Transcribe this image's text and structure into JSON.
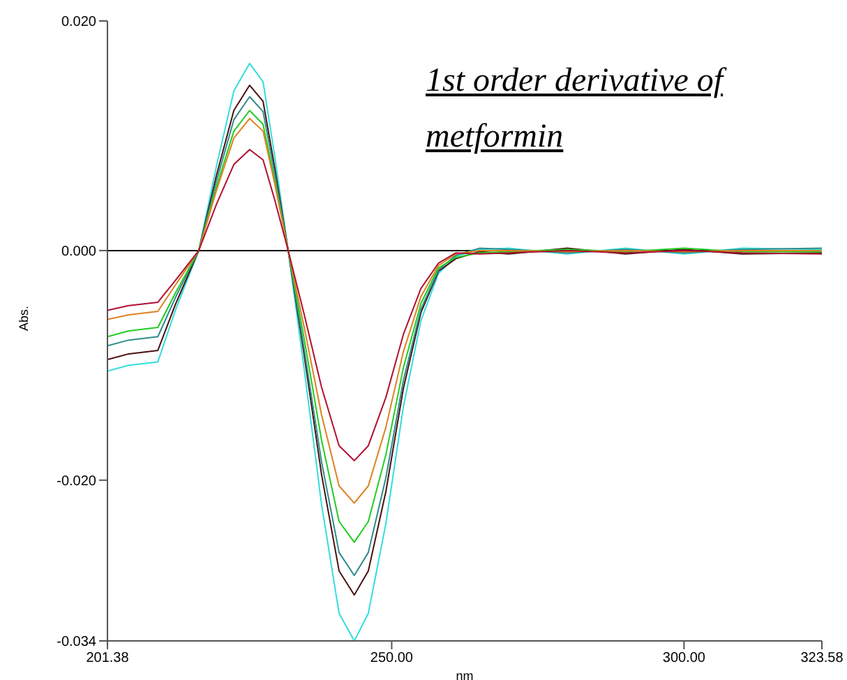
{
  "chart_data": {
    "type": "line",
    "title": "1st order derivative of metformin",
    "xlabel": "nm",
    "ylabel": "Abs.",
    "x": [
      201.38,
      205,
      210,
      213,
      217,
      220,
      223,
      225.7,
      228,
      230,
      232.3,
      235,
      238,
      241,
      243.6,
      246,
      249,
      252,
      255,
      258,
      261,
      265,
      270,
      280,
      290,
      300,
      310,
      323.58
    ],
    "series": [
      {
        "color": "#33dddd",
        "values": [
          -0.0105,
          -0.01,
          -0.0097,
          -0.0052,
          0,
          0.0073,
          0.0139,
          0.0163,
          0.0147,
          0.0082,
          0,
          -0.0102,
          -0.0221,
          -0.0316,
          -0.034,
          -0.0316,
          -0.0238,
          -0.0136,
          -0.0061,
          -0.002,
          -0.0005,
          0.0001,
          0.0002,
          -0.0003,
          0.0002,
          -0.0003,
          0.0002,
          0.0001
        ]
      },
      {
        "color": "#4a1010",
        "values": [
          -0.0095,
          -0.009,
          -0.0087,
          -0.0047,
          0,
          0.0065,
          0.0122,
          0.0144,
          0.013,
          0.0072,
          0,
          -0.009,
          -0.0195,
          -0.0279,
          -0.03,
          -0.0279,
          -0.021,
          -0.012,
          -0.0054,
          -0.0018,
          -0.0007,
          -0.0001,
          -0.0003,
          0.0002,
          -0.0003,
          0.0001,
          -0.0003,
          -0.0002
        ]
      },
      {
        "color": "#2e8b8b",
        "values": [
          -0.0083,
          -0.0078,
          -0.0075,
          -0.0041,
          0,
          0.006,
          0.0114,
          0.0134,
          0.0121,
          0.0067,
          0,
          -0.0085,
          -0.0184,
          -0.0263,
          -0.0283,
          -0.0263,
          -0.0198,
          -0.0113,
          -0.0051,
          -0.0017,
          -0.0004,
          0.0002,
          0.0001,
          -0.0002,
          0.0001,
          -0.0002,
          0.0001,
          0.0002
        ]
      },
      {
        "color": "#22cc22",
        "values": [
          -0.0075,
          -0.007,
          -0.0067,
          -0.0037,
          0,
          0.0055,
          0.0104,
          0.0122,
          0.011,
          0.0061,
          0,
          -0.0076,
          -0.0165,
          -0.0236,
          -0.0254,
          -0.0236,
          -0.0178,
          -0.0102,
          -0.0046,
          -0.0015,
          -0.0006,
          -0.0002,
          -0.0001,
          0.0001,
          -0.0001,
          0.0002,
          -0.0001,
          -0.0001
        ]
      },
      {
        "color": "#e08020",
        "values": [
          -0.006,
          -0.0056,
          -0.0053,
          -0.003,
          0,
          0.0052,
          0.0098,
          0.0115,
          0.0104,
          0.0058,
          0,
          -0.0066,
          -0.0143,
          -0.0205,
          -0.022,
          -0.0205,
          -0.0154,
          -0.0088,
          -0.004,
          -0.0013,
          -0.0003,
          0,
          0,
          -0.0001,
          0,
          -0.0001,
          0,
          0
        ]
      },
      {
        "color": "#b01030",
        "values": [
          -0.0052,
          -0.0048,
          -0.0045,
          -0.0026,
          0,
          0.004,
          0.0075,
          0.0088,
          0.0079,
          0.0044,
          0,
          -0.0055,
          -0.0119,
          -0.017,
          -0.0183,
          -0.017,
          -0.0128,
          -0.0073,
          -0.0033,
          -0.0011,
          -0.0002,
          -0.0003,
          -0.0002,
          0,
          -0.0002,
          0,
          -0.0002,
          -0.0003
        ]
      }
    ],
    "xlim": [
      201.38,
      323.58
    ],
    "xticks": [
      {
        "value": 201.38,
        "label": "201.38"
      },
      {
        "value": 250,
        "label": "250.00"
      },
      {
        "value": 300,
        "label": "300.00"
      },
      {
        "value": 323.58,
        "label": "323.58"
      }
    ],
    "ylim": [
      -0.034,
      0.02
    ],
    "yticks": [
      {
        "value": -0.034,
        "label": "-0.034"
      },
      {
        "value": -0.02,
        "label": "-0.020"
      },
      {
        "value": 0,
        "label": "0.000"
      },
      {
        "value": 0.02,
        "label": "0.020"
      }
    ],
    "ref_lines": [
      {
        "axis": "y",
        "value": 0,
        "color": "#000000"
      }
    ],
    "marker": "none",
    "line_style": "solid",
    "grid": false,
    "legend": false
  }
}
